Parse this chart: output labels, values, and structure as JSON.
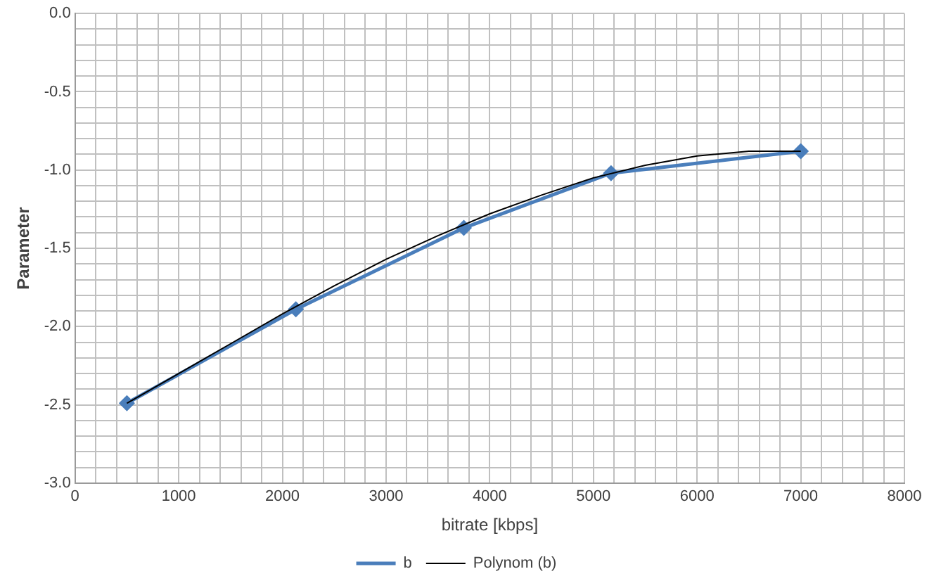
{
  "chart_data": {
    "type": "line",
    "xlabel": "bitrate [kbps]",
    "ylabel": "Parameter",
    "series": [
      {
        "name": "b",
        "color": "#4a7ebb",
        "marker": "diamond",
        "x": [
          500,
          2130,
          3750,
          5170,
          7000
        ],
        "values": [
          -2.49,
          -1.89,
          -1.37,
          -1.02,
          -0.88
        ]
      },
      {
        "name": "Polynom (b)",
        "color": "#000000",
        "marker": "none",
        "x": [
          500,
          1000,
          1500,
          2000,
          2500,
          3000,
          3500,
          4000,
          4500,
          5000,
          5500,
          6000,
          6500,
          7000
        ],
        "values": [
          -2.49,
          -2.3,
          -2.11,
          -1.92,
          -1.74,
          -1.57,
          -1.42,
          -1.28,
          -1.16,
          -1.05,
          -0.97,
          -0.91,
          -0.88,
          -0.88
        ]
      }
    ],
    "xlim": [
      0,
      8000
    ],
    "xticks": [
      0,
      {
        "value": 200,
        "label": null
      },
      {
        "value": 400,
        "label": null
      },
      {
        "value": 600,
        "label": null
      },
      {
        "value": 800,
        "label": null
      },
      1000,
      {
        "value": 1200,
        "label": null
      },
      {
        "value": 1400,
        "label": null
      },
      {
        "value": 1600,
        "label": null
      },
      {
        "value": 1800,
        "label": null
      },
      2000,
      {
        "value": 2200,
        "label": null
      },
      {
        "value": 2400,
        "label": null
      },
      {
        "value": 2600,
        "label": null
      },
      {
        "value": 2800,
        "label": null
      },
      3000,
      {
        "value": 3200,
        "label": null
      },
      {
        "value": 3400,
        "label": null
      },
      {
        "value": 3600,
        "label": null
      },
      {
        "value": 3800,
        "label": null
      },
      4000,
      {
        "value": 4200,
        "label": null
      },
      {
        "value": 4400,
        "label": null
      },
      {
        "value": 4600,
        "label": null
      },
      {
        "value": 4800,
        "label": null
      },
      5000,
      {
        "value": 5200,
        "label": null
      },
      {
        "value": 5400,
        "label": null
      },
      {
        "value": 5600,
        "label": null
      },
      {
        "value": 5800,
        "label": null
      },
      6000,
      {
        "value": 6200,
        "label": null
      },
      {
        "value": 6400,
        "label": null
      },
      {
        "value": 6600,
        "label": null
      },
      {
        "value": 6800,
        "label": null
      },
      7000,
      {
        "value": 7200,
        "label": null
      },
      {
        "value": 7400,
        "label": null
      },
      {
        "value": 7600,
        "label": null
      },
      {
        "value": 7800,
        "label": null
      },
      8000
    ],
    "ylim": [
      -3,
      0
    ],
    "yticks": [
      {
        "value": 0,
        "label": "0.0"
      },
      {
        "value": -0.1,
        "label": null
      },
      {
        "value": -0.2,
        "label": null
      },
      {
        "value": -0.3,
        "label": null
      },
      {
        "value": -0.4,
        "label": null
      },
      -0.5,
      {
        "value": -0.6,
        "label": null
      },
      {
        "value": -0.7,
        "label": null
      },
      {
        "value": -0.8,
        "label": null
      },
      {
        "value": -0.9,
        "label": null
      },
      {
        "value": -1,
        "label": "-1.0"
      },
      {
        "value": -1.1,
        "label": null
      },
      {
        "value": -1.2,
        "label": null
      },
      {
        "value": -1.3,
        "label": null
      },
      {
        "value": -1.4,
        "label": null
      },
      -1.5,
      {
        "value": -1.6,
        "label": null
      },
      {
        "value": -1.7,
        "label": null
      },
      {
        "value": -1.8,
        "label": null
      },
      {
        "value": -1.9,
        "label": null
      },
      {
        "value": -2,
        "label": "-2.0"
      },
      {
        "value": -2.1,
        "label": null
      },
      {
        "value": -2.2,
        "label": null
      },
      {
        "value": -2.3,
        "label": null
      },
      {
        "value": -2.4,
        "label": null
      },
      -2.5,
      {
        "value": -2.6,
        "label": null
      },
      {
        "value": -2.7,
        "label": null
      },
      {
        "value": -2.8,
        "label": null
      },
      {
        "value": -2.9,
        "label": null
      },
      {
        "value": -3,
        "label": "-3.0"
      }
    ],
    "grid": true,
    "legend": "bottom"
  }
}
